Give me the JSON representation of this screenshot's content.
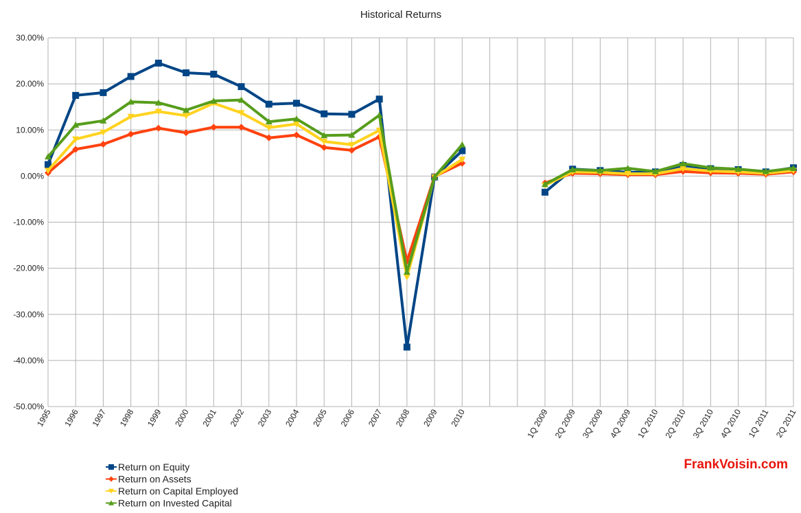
{
  "chart_data": {
    "type": "line",
    "title": "Historical Returns",
    "xlabel": "",
    "ylabel": "",
    "ylim": [
      -50,
      30
    ],
    "yticks": [
      30,
      20,
      10,
      0,
      -10,
      -20,
      -30,
      -40,
      -50
    ],
    "ytick_labels": [
      "30.00%",
      "20.00%",
      "10.00%",
      "0.00%",
      "-10.00%",
      "-20.00%",
      "-30.00%",
      "-40.00%",
      "-50.00%"
    ],
    "grid": true,
    "legend_position": "bottom-left",
    "categories": [
      "1995",
      "1996",
      "1997",
      "1998",
      "1999",
      "2000",
      "2001",
      "2002",
      "2003",
      "2004",
      "2005",
      "2006",
      "2007",
      "2008",
      "2009",
      "2010",
      "",
      "",
      "1Q 2009",
      "2Q 2009",
      "3Q 2009",
      "4Q 2009",
      "1Q 2010",
      "2Q 2010",
      "3Q 2010",
      "4Q 2010",
      "1Q 2011",
      "2Q 2011"
    ],
    "series": [
      {
        "name": "Return on Equity",
        "color": "#004586",
        "marker": "square",
        "values": [
          2.5,
          17.5,
          18.1,
          21.6,
          24.5,
          22.4,
          22.1,
          19.4,
          15.6,
          15.8,
          13.5,
          13.4,
          16.7,
          -37.1,
          -0.2,
          5.5,
          null,
          null,
          -3.5,
          1.5,
          1.2,
          0.8,
          0.9,
          2.3,
          1.6,
          1.4,
          0.9,
          1.8
        ]
      },
      {
        "name": "Return on Assets",
        "color": "#ff420e",
        "marker": "diamond",
        "values": [
          0.7,
          5.8,
          6.9,
          9.1,
          10.4,
          9.4,
          10.6,
          10.6,
          8.3,
          8.9,
          6.2,
          5.6,
          8.5,
          -18.5,
          -0.1,
          2.8,
          null,
          null,
          -1.5,
          0.6,
          0.5,
          0.3,
          0.3,
          1.0,
          0.7,
          0.6,
          0.4,
          0.9
        ]
      },
      {
        "name": "Return on Capital Employed",
        "color": "#ffd320",
        "marker": "triangle-down",
        "values": [
          1.2,
          8.0,
          9.5,
          12.9,
          14.0,
          13.1,
          15.8,
          13.7,
          10.5,
          11.3,
          7.5,
          6.8,
          9.9,
          -21.9,
          -0.2,
          3.6,
          null,
          null,
          -2.0,
          0.9,
          0.8,
          0.5,
          0.5,
          1.6,
          1.1,
          0.9,
          0.6,
          1.2
        ]
      },
      {
        "name": "Return on Invested Capital",
        "color": "#579d1c",
        "marker": "triangle-up",
        "values": [
          4.2,
          11.1,
          12.0,
          16.1,
          15.9,
          14.3,
          16.3,
          16.5,
          11.8,
          12.4,
          8.8,
          8.9,
          13.2,
          -20.8,
          -0.2,
          6.8,
          null,
          null,
          -1.8,
          1.4,
          1.2,
          1.7,
          1.0,
          2.7,
          1.8,
          1.5,
          1.0,
          1.7
        ]
      }
    ]
  },
  "watermark": "FrankVoisin.com"
}
